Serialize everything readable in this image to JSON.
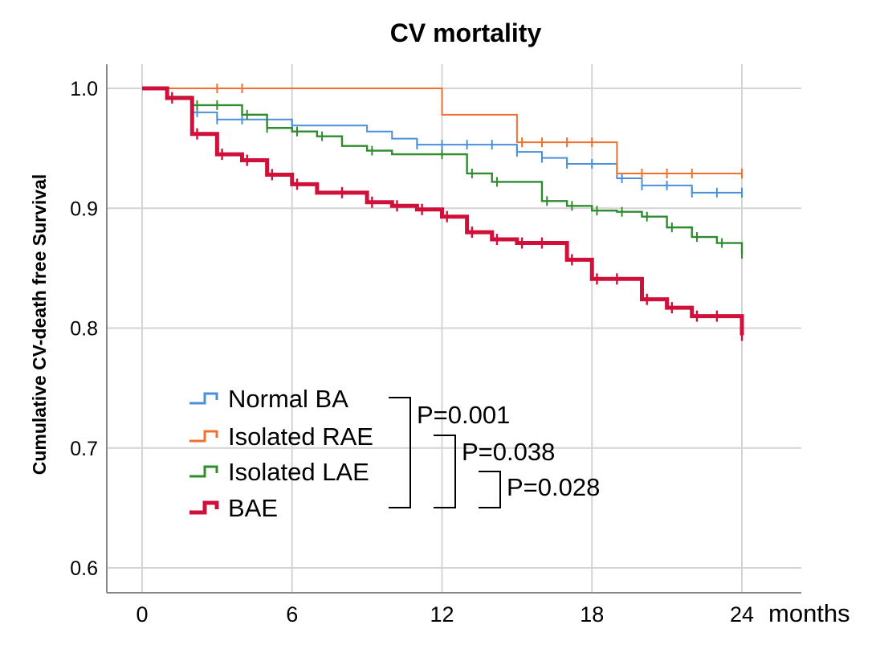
{
  "chart_data": {
    "type": "line",
    "subtype": "kaplan-meier step curve",
    "title": "CV mortality",
    "ylabel": "Cumulative CV-death free Survival",
    "xlabel": "months",
    "xlim": [
      0,
      24
    ],
    "ylim": [
      0.6,
      1.0
    ],
    "xticks": [
      0,
      6,
      12,
      18,
      24
    ],
    "xtick_labels": [
      "0",
      "6",
      "12",
      "18",
      "24"
    ],
    "yticks": [
      0.6,
      0.7,
      0.8,
      0.9,
      1.0
    ],
    "ytick_labels": [
      "0.6",
      "0.7",
      "0.8",
      "0.9",
      "1.0"
    ],
    "grid": true,
    "legend_position": "bottom-left inside plot",
    "series": [
      {
        "name": "Normal BA",
        "color": "#4a90d9",
        "steps": [
          [
            0,
            1.0
          ],
          [
            1,
            0.993
          ],
          [
            2,
            0.98
          ],
          [
            3,
            0.974
          ],
          [
            6,
            0.969
          ],
          [
            9,
            0.964
          ],
          [
            10,
            0.958
          ],
          [
            11,
            0.953
          ],
          [
            15,
            0.947
          ],
          [
            16,
            0.942
          ],
          [
            17,
            0.937
          ],
          [
            19,
            0.925
          ],
          [
            20,
            0.919
          ],
          [
            22,
            0.913
          ],
          [
            24,
            0.913
          ]
        ],
        "censored": [
          [
            1.2,
            0.993
          ],
          [
            2.2,
            0.98
          ],
          [
            3,
            0.974
          ],
          [
            4,
            0.974
          ],
          [
            6,
            0.969
          ],
          [
            11,
            0.953
          ],
          [
            12,
            0.953
          ],
          [
            13,
            0.953
          ],
          [
            14,
            0.953
          ],
          [
            15,
            0.947
          ],
          [
            16,
            0.942
          ],
          [
            17,
            0.937
          ],
          [
            18,
            0.937
          ],
          [
            19.2,
            0.925
          ],
          [
            20,
            0.919
          ],
          [
            21,
            0.919
          ],
          [
            22,
            0.913
          ],
          [
            23,
            0.913
          ],
          [
            24,
            0.913
          ]
        ]
      },
      {
        "name": "Isolated RAE",
        "color": "#f07030",
        "steps": [
          [
            0,
            1.0
          ],
          [
            12,
            0.978
          ],
          [
            15,
            0.955
          ],
          [
            19,
            0.929
          ],
          [
            24,
            0.929
          ]
        ],
        "censored": [
          [
            3,
            1.0
          ],
          [
            4,
            1.0
          ],
          [
            15.2,
            0.955
          ],
          [
            16,
            0.955
          ],
          [
            17,
            0.955
          ],
          [
            18,
            0.955
          ],
          [
            20,
            0.929
          ],
          [
            21,
            0.929
          ],
          [
            22,
            0.929
          ],
          [
            24,
            0.929
          ]
        ]
      },
      {
        "name": "Isolated LAE",
        "color": "#2e8b2e",
        "steps": [
          [
            0,
            1.0
          ],
          [
            1,
            0.993
          ],
          [
            2,
            0.986
          ],
          [
            4,
            0.978
          ],
          [
            5,
            0.967
          ],
          [
            6,
            0.964
          ],
          [
            7,
            0.96
          ],
          [
            8,
            0.952
          ],
          [
            9,
            0.948
          ],
          [
            10,
            0.945
          ],
          [
            13,
            0.929
          ],
          [
            14,
            0.922
          ],
          [
            16,
            0.906
          ],
          [
            17,
            0.902
          ],
          [
            18,
            0.898
          ],
          [
            19,
            0.897
          ],
          [
            20,
            0.893
          ],
          [
            21,
            0.884
          ],
          [
            22,
            0.876
          ],
          [
            23,
            0.871
          ],
          [
            24,
            0.862
          ]
        ],
        "censored": [
          [
            2.2,
            0.986
          ],
          [
            3,
            0.986
          ],
          [
            4.2,
            0.978
          ],
          [
            5,
            0.967
          ],
          [
            6.2,
            0.964
          ],
          [
            7.2,
            0.96
          ],
          [
            9.2,
            0.948
          ],
          [
            12,
            0.945
          ],
          [
            13.2,
            0.929
          ],
          [
            14.2,
            0.922
          ],
          [
            16.2,
            0.906
          ],
          [
            17.2,
            0.902
          ],
          [
            18.2,
            0.898
          ],
          [
            19.2,
            0.897
          ],
          [
            20.2,
            0.893
          ],
          [
            21.2,
            0.884
          ],
          [
            22.2,
            0.876
          ],
          [
            23.2,
            0.871
          ],
          [
            24,
            0.862
          ]
        ]
      },
      {
        "name": "BAE",
        "color": "#d0103a",
        "steps": [
          [
            0,
            1.0
          ],
          [
            1,
            0.992
          ],
          [
            2,
            0.962
          ],
          [
            3,
            0.945
          ],
          [
            4,
            0.94
          ],
          [
            5,
            0.928
          ],
          [
            6,
            0.92
          ],
          [
            7,
            0.913
          ],
          [
            9,
            0.905
          ],
          [
            10,
            0.902
          ],
          [
            11,
            0.899
          ],
          [
            12,
            0.893
          ],
          [
            13,
            0.88
          ],
          [
            14,
            0.874
          ],
          [
            15,
            0.871
          ],
          [
            17,
            0.857
          ],
          [
            18,
            0.841
          ],
          [
            20,
            0.824
          ],
          [
            21,
            0.817
          ],
          [
            22,
            0.81
          ],
          [
            24,
            0.794
          ]
        ],
        "censored": [
          [
            1.2,
            0.992
          ],
          [
            2.2,
            0.962
          ],
          [
            3.2,
            0.945
          ],
          [
            4.2,
            0.94
          ],
          [
            5.2,
            0.928
          ],
          [
            6.2,
            0.92
          ],
          [
            8,
            0.913
          ],
          [
            9.2,
            0.905
          ],
          [
            10.2,
            0.902
          ],
          [
            11.2,
            0.899
          ],
          [
            12.2,
            0.893
          ],
          [
            13.2,
            0.88
          ],
          [
            14.2,
            0.874
          ],
          [
            15.2,
            0.871
          ],
          [
            16,
            0.871
          ],
          [
            17.2,
            0.857
          ],
          [
            18.2,
            0.841
          ],
          [
            19,
            0.841
          ],
          [
            20.2,
            0.824
          ],
          [
            21.2,
            0.817
          ],
          [
            22.2,
            0.81
          ],
          [
            23,
            0.81
          ],
          [
            24,
            0.794
          ]
        ]
      }
    ],
    "annotations": [
      "P=0.001",
      "P=0.038",
      "P=0.028"
    ]
  }
}
